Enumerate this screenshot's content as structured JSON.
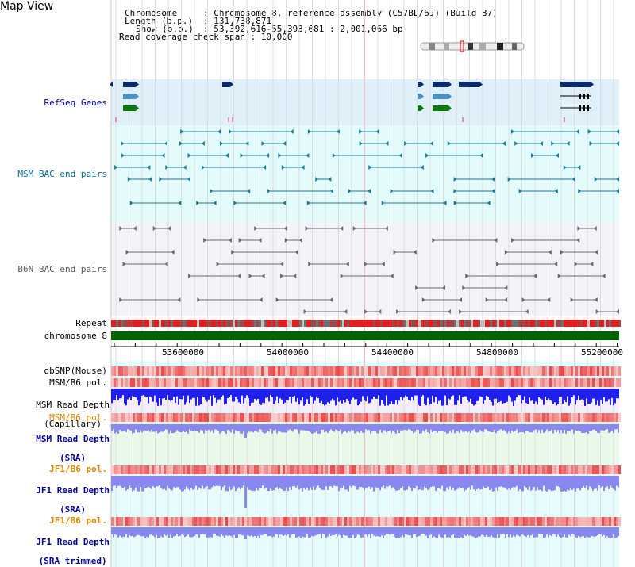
{
  "page": {
    "title": "Map View"
  },
  "info": {
    "chrom_key": "Chromosome",
    "chrom_val": ": Chromosome 8, reference assembly (C57BL/6J) (Build 37)",
    "length_key": "Length (b.p.)",
    "length_val": ": 131,738,871",
    "show_key": "Show (b.p.)",
    "show_val": ": 53,392,616-55,393,681 : 2,001,066 bp",
    "coverage": "Read coverage check span : 10,000"
  },
  "tracks": {
    "refseq": "RefSeq Genes",
    "msm_bac": "MSM BAC end pairs",
    "b6n_bac": "B6N BAC end pairs",
    "repeat": "Repeat",
    "chromosome": "chromosome 8",
    "dbsnp": "dbSNP(Mouse)",
    "msm_b6_pol_1": "MSM/B6 pol.",
    "msm_depth_cap_1": "MSM Read Depth",
    "msm_depth_cap_2": "(Capillary)",
    "msm_b6_pol_2": "MSM/B6 pol.",
    "msm_depth_sra_1": "MSM Read Depth",
    "msm_depth_sra_2": "(SRA)",
    "jf1_b6_pol_1": "JF1/B6 pol.",
    "jf1_depth_sra_1": "JF1 Read Depth",
    "jf1_depth_sra_2": "(SRA)",
    "jf1_b6_pol_2": "JF1/B6 pol.",
    "jf1_depth_trim_1": "JF1 Read Depth",
    "jf1_depth_trim_2": "(SRA trimmed)"
  },
  "axis": {
    "ticks": [
      "53600000",
      "54000000",
      "54400000",
      "54800000",
      "55200000"
    ]
  },
  "colors": {
    "refseq_bg": "#dff0fb",
    "msm_bg": "#e4fbfb",
    "b6n_bg": "#f3f3f8",
    "lower_bg": "#e6fbfb",
    "navy": "#0a2a6e",
    "chrom_green": "#006400",
    "depth_blue": "#2020ee",
    "depth_lavender": "#8888ee",
    "msm_label": "#006e8c",
    "b6n_label": "#555566",
    "refseq_label": "#0000aa",
    "pol_label": "#dd8800",
    "depth_label": "#000099"
  }
}
